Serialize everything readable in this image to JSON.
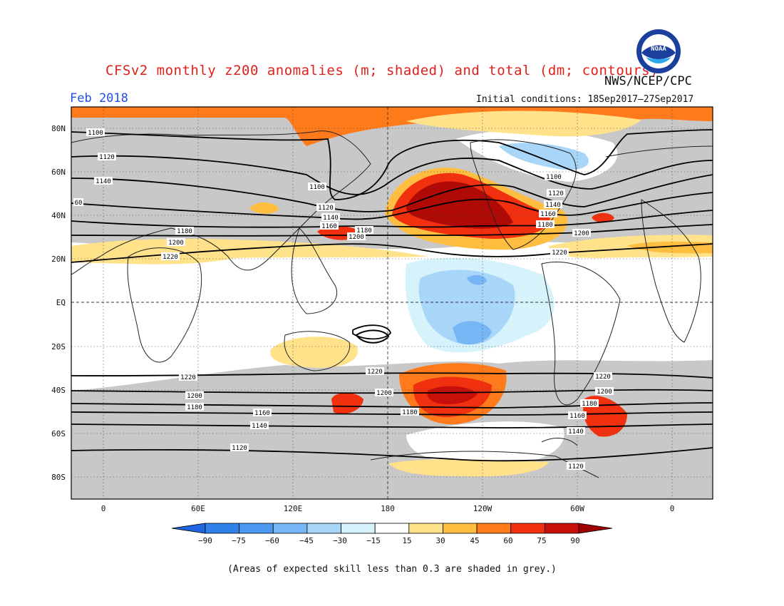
{
  "header": {
    "title": "CFSv2 monthly z200 anomalies (m; shaded) and total (dm; contours)",
    "agency": "NWS/NCEP/CPC",
    "period": "Feb 2018",
    "initial_conditions": "Initial conditions: 18Sep2017–27Sep2017",
    "logo_text": "NOAA"
  },
  "map": {
    "lat_labels": [
      "80N",
      "60N",
      "40N",
      "20N",
      "EQ",
      "20S",
      "40S",
      "60S",
      "80S"
    ],
    "lon_labels": [
      "0",
      "60E",
      "120E",
      "180",
      "120W",
      "60W",
      "0"
    ],
    "contour_labels": [
      "1100",
      "1120",
      "1140",
      "60",
      "1180",
      "1200",
      "1220",
      "1100",
      "1120",
      "1140",
      "1160",
      "1200",
      "1180",
      "1100",
      "1120",
      "1140",
      "1160",
      "1180",
      "1200",
      "1220",
      "1220",
      "1200",
      "1180",
      "1160",
      "1140",
      "1120",
      "1220",
      "1200",
      "1180",
      "1220",
      "1200",
      "1180",
      "1160",
      "1140",
      "1120"
    ]
  },
  "colorbar": {
    "ticks": [
      "−90",
      "−75",
      "−60",
      "−45",
      "−30",
      "−15",
      "15",
      "30",
      "45",
      "60",
      "75",
      "90"
    ],
    "colors": [
      "#1f66e0",
      "#2f80e8",
      "#4a98ef",
      "#77b6f4",
      "#a8d6f8",
      "#d6f3fb",
      "#ffffff",
      "#ffe28a",
      "#ffbe3f",
      "#ff7a1a",
      "#f0300e",
      "#c8100a",
      "#9c0000"
    ]
  },
  "footnote": "(Areas of expected skill less than 0.3 are shaded in grey.)"
}
